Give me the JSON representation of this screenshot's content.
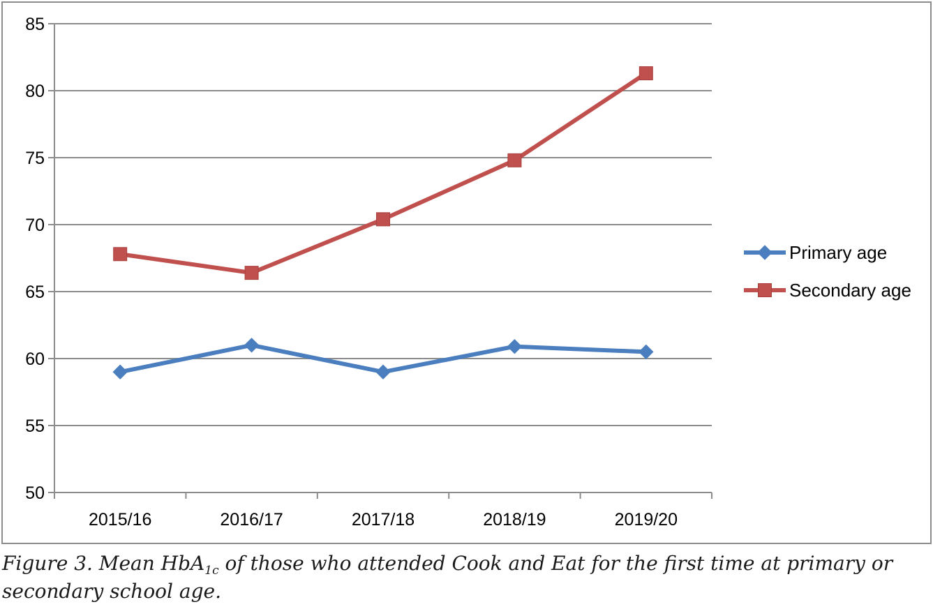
{
  "chart_data": {
    "type": "line",
    "title": "",
    "xlabel": "",
    "ylabel": "",
    "categories": [
      "2015/16",
      "2016/17",
      "2017/18",
      "2018/19",
      "2019/20"
    ],
    "ylim": [
      50,
      85
    ],
    "yticks": [
      50,
      55,
      60,
      65,
      70,
      75,
      80,
      85
    ],
    "grid": true,
    "legend_position": "right",
    "series": [
      {
        "name": "Primary age",
        "color": "#4a7ebf",
        "marker": "diamond",
        "values": [
          59.0,
          61.0,
          59.0,
          60.9,
          60.5
        ]
      },
      {
        "name": "Secondary age",
        "color": "#c0504d",
        "marker": "square",
        "values": [
          67.8,
          66.4,
          70.4,
          74.8,
          81.3
        ]
      }
    ]
  },
  "caption": {
    "before_sub": "Figure 3. Mean HbA",
    "sub": "1c",
    "after_sub": " of those who attended Cook and Eat for the first time at primary or secondary school age."
  }
}
